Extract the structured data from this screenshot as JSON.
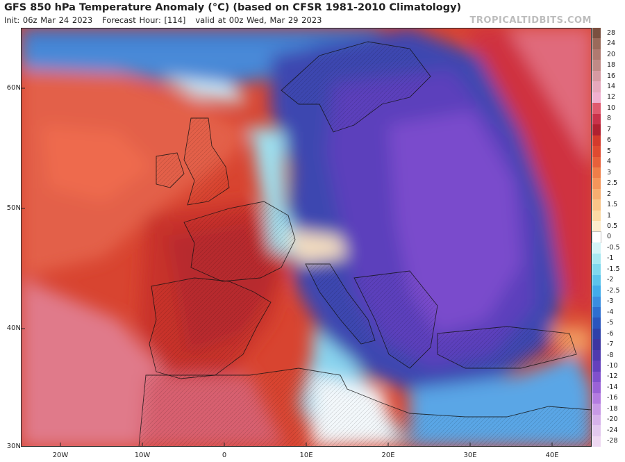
{
  "header": {
    "title": "GFS 850 hPa Temperature Anomaly (°C) (based on CFSR 1981-2010 Climatology)",
    "init": "Init: 06z Mar 24 2023",
    "forecast_hour": "Forecast Hour: [114]",
    "valid": "valid at 00z Wed, Mar 29 2023",
    "brand": "TROPICALTIDBITS.COM"
  },
  "axes": {
    "lat_labels": [
      "60N",
      "50N",
      "40N",
      "30N"
    ],
    "lon_labels": [
      "20W",
      "10W",
      "0",
      "10E",
      "20E",
      "30E",
      "40E"
    ]
  },
  "colorbar": {
    "labels": [
      "28",
      "24",
      "20",
      "18",
      "16",
      "14",
      "12",
      "10",
      "8",
      "7",
      "6",
      "5",
      "4",
      "3",
      "2.5",
      "2",
      "1.5",
      "1",
      "0.5",
      "0",
      "-0.5",
      "-1",
      "-1.5",
      "-2",
      "-2.5",
      "-3",
      "-4",
      "-5",
      "-6",
      "-7",
      "-8",
      "-10",
      "-12",
      "-14",
      "-16",
      "-18",
      "-20",
      "-24",
      "-28"
    ],
    "colors": [
      "#7a5040",
      "#9a6a5a",
      "#b07a70",
      "#c08a86",
      "#d69aa2",
      "#e6a8bc",
      "#f0b0d0",
      "#e05a6e",
      "#c9324a",
      "#b02030",
      "#d43a2c",
      "#e04a30",
      "#e8603a",
      "#ef7e48",
      "#f4955a",
      "#f7ad70",
      "#f9c488",
      "#fbd9a4",
      "#fdeccc",
      "#ffffff",
      "#d4f4f8",
      "#a8e8f2",
      "#80d8ee",
      "#5cc4ec",
      "#42acea",
      "#3a8ee0",
      "#2e6fd0",
      "#2a55bd",
      "#2e40a8",
      "#3c35a0",
      "#4f3aae",
      "#6440bc",
      "#8050cc",
      "#9a62d6",
      "#b47ce0",
      "#c89ae6",
      "#d6b2ea",
      "#e2c8ee",
      "#eed8f2"
    ]
  }
}
